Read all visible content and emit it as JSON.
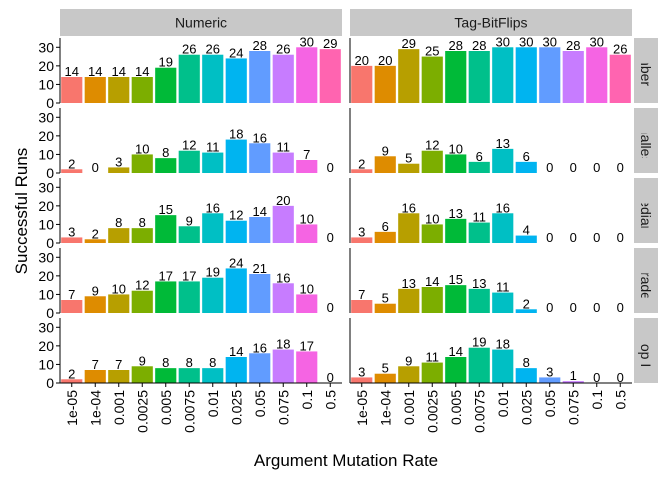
{
  "chart_data": {
    "type": "bar",
    "xlabel": "Argument Mutation Rate",
    "ylabel": "Successful Runs",
    "ylim": [
      0,
      35
    ],
    "yticks": [
      0,
      10,
      20,
      30
    ],
    "categories": [
      "1e-05",
      "1e-04",
      "0.001",
      "0.0025",
      "0.005",
      "0.0075",
      "0.01",
      "0.025",
      "0.05",
      "0.075",
      "0.1",
      "0.5"
    ],
    "colors": [
      "#F8766D",
      "#DE8C00",
      "#B79F00",
      "#7CAE00",
      "#00BA38",
      "#00C08B",
      "#00BFC4",
      "#00B4F0",
      "#619CFF",
      "#C77CFF",
      "#F564E3",
      "#FF64B0"
    ],
    "columns": [
      "Numeric",
      "Tag-BitFlips"
    ],
    "rows": [
      "Number IO",
      "Smallest",
      "Median",
      "Grade",
      "For Loop Index"
    ],
    "panels": [
      {
        "row": "Number IO",
        "col": "Numeric",
        "values": [
          14,
          14,
          14,
          14,
          19,
          26,
          26,
          24,
          28,
          26,
          30,
          29
        ]
      },
      {
        "row": "Number IO",
        "col": "Tag-BitFlips",
        "values": [
          20,
          20,
          29,
          25,
          28,
          28,
          30,
          30,
          30,
          28,
          30,
          26
        ]
      },
      {
        "row": "Smallest",
        "col": "Numeric",
        "values": [
          2,
          0,
          3,
          10,
          8,
          12,
          11,
          18,
          16,
          11,
          7,
          0
        ]
      },
      {
        "row": "Smallest",
        "col": "Tag-BitFlips",
        "values": [
          2,
          9,
          5,
          12,
          10,
          6,
          13,
          6,
          0,
          0,
          0,
          0
        ]
      },
      {
        "row": "Median",
        "col": "Numeric",
        "values": [
          3,
          2,
          8,
          8,
          15,
          9,
          16,
          12,
          14,
          20,
          10,
          0
        ]
      },
      {
        "row": "Median",
        "col": "Tag-BitFlips",
        "values": [
          3,
          6,
          16,
          10,
          13,
          11,
          16,
          4,
          0,
          0,
          0,
          0
        ]
      },
      {
        "row": "Grade",
        "col": "Numeric",
        "values": [
          7,
          9,
          10,
          12,
          17,
          17,
          19,
          24,
          21,
          16,
          10,
          0
        ]
      },
      {
        "row": "Grade",
        "col": "Tag-BitFlips",
        "values": [
          7,
          5,
          13,
          14,
          15,
          13,
          11,
          2,
          0,
          0,
          0,
          0
        ]
      },
      {
        "row": "For Loop Index",
        "col": "Numeric",
        "values": [
          2,
          7,
          7,
          9,
          8,
          8,
          8,
          14,
          16,
          18,
          17,
          0
        ]
      },
      {
        "row": "For Loop Index",
        "col": "Tag-BitFlips",
        "values": [
          3,
          5,
          9,
          11,
          14,
          19,
          18,
          8,
          3,
          1,
          0,
          0
        ]
      }
    ]
  }
}
